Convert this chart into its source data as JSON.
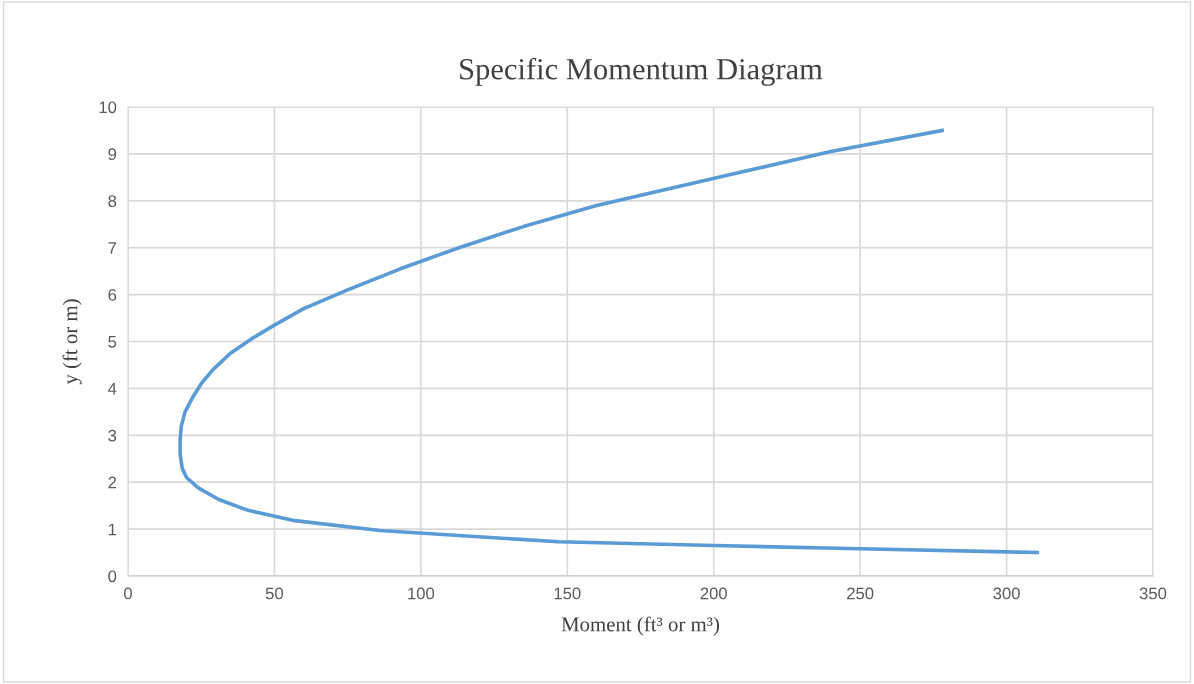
{
  "chart_data": {
    "type": "line",
    "title": "Specific Momentum Diagram",
    "xlabel": "Moment (ft³ or m³)",
    "ylabel": "y (ft or m)",
    "series": [
      {
        "color": "#5b9bd5",
        "x": [
          310.5,
          250,
          200,
          147,
          86,
          57,
          41,
          31,
          24,
          20,
          18.5,
          17.8,
          17.8,
          18.2,
          19.5,
          22,
          25,
          29,
          35,
          42,
          50,
          60,
          75,
          93,
          113,
          135,
          160,
          205,
          240,
          278
        ],
        "values": [
          0.5,
          0.58,
          0.65,
          0.73,
          0.97,
          1.18,
          1.4,
          1.63,
          1.88,
          2.1,
          2.3,
          2.6,
          2.9,
          3.2,
          3.5,
          3.8,
          4.1,
          4.4,
          4.75,
          5.05,
          5.35,
          5.7,
          6.1,
          6.55,
          7.0,
          7.45,
          7.9,
          8.55,
          9.05,
          9.5
        ]
      }
    ],
    "xlim": [
      0,
      350
    ],
    "xticks": [
      0,
      50,
      100,
      150,
      200,
      250,
      300,
      350
    ],
    "ylim": [
      0,
      10
    ],
    "yticks": [
      0,
      1,
      2,
      3,
      4,
      5,
      6,
      7,
      8,
      9,
      10
    ],
    "grid": true,
    "marker": "none",
    "line_style": "solid"
  }
}
